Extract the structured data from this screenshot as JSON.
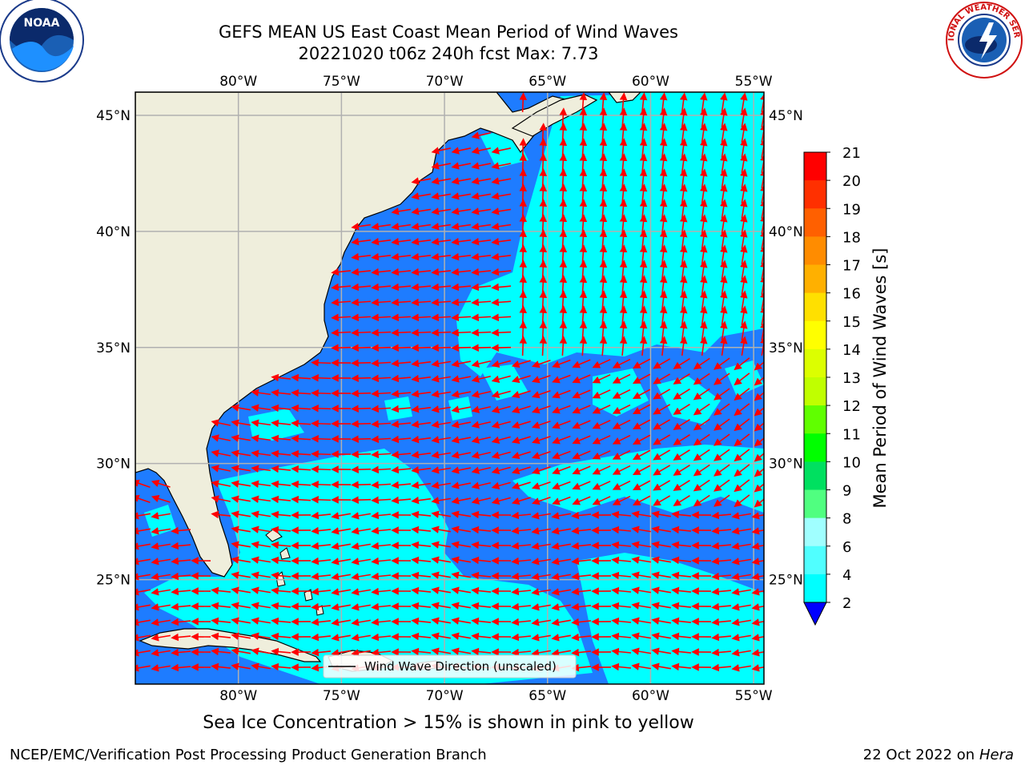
{
  "header": {
    "title_line1": "GEFS MEAN US East Coast Mean Period of Wind Waves",
    "title_line2": "20221020 t06z 240h fcst   Max: 7.73"
  },
  "logos": {
    "left": {
      "text": "NOAA",
      "ring_text": "NATIONAL OCEANIC AND ATMOSPHERIC ADMINISTRATION",
      "bottom_text": "U.S. DEPARTMENT OF COMMERCE",
      "icon": "noaa-logo"
    },
    "right": {
      "ring_text": "NATIONAL WEATHER SERVICE",
      "icon": "nws-logo"
    }
  },
  "map": {
    "lon_labels": [
      "80°W",
      "75°W",
      "70°W",
      "65°W",
      "60°W",
      "55°W"
    ],
    "lon_values": [
      -80,
      -75,
      -70,
      -65,
      -60,
      -55
    ],
    "lat_labels": [
      "45°N",
      "40°N",
      "35°N",
      "30°N",
      "25°N"
    ],
    "lat_values": [
      45,
      40,
      35,
      30,
      25
    ],
    "lon_range": [
      -85,
      -54.5
    ],
    "lat_range": [
      20.5,
      46
    ],
    "legend_label": "Wind Wave Direction (unscaled)",
    "colors": {
      "land": "#efeedc",
      "period_2_4": "#1e7cff",
      "period_4_6": "#00ffff",
      "arrow": "#ff0000",
      "grid": "#b0b0b0"
    }
  },
  "colorbar": {
    "label": "Mean Period of Wind Waves [s]",
    "ticks": [
      "21",
      "20",
      "19",
      "18",
      "17",
      "16",
      "15",
      "14",
      "13",
      "12",
      "11",
      "10",
      "9",
      "8",
      "6",
      "4",
      "2"
    ],
    "colors": [
      "#ff0000",
      "#ff3000",
      "#ff6000",
      "#ff8c00",
      "#ffb000",
      "#ffe000",
      "#ffff00",
      "#dcff00",
      "#c0ff00",
      "#60ff00",
      "#00ff00",
      "#00e060",
      "#50ff80",
      "#a0ffff",
      "#50ffff",
      "#00ffff",
      "#1e7cff",
      "#0000ff"
    ],
    "extend_color": "#0000ff"
  },
  "footer": {
    "subtitle": "Sea Ice Concentration > 15% is shown in pink to yellow",
    "credit_left": "NCEP/EMC/Verification Post Processing Product Generation Branch",
    "credit_date": "22 Oct 2022 on",
    "credit_host": "Hera"
  }
}
